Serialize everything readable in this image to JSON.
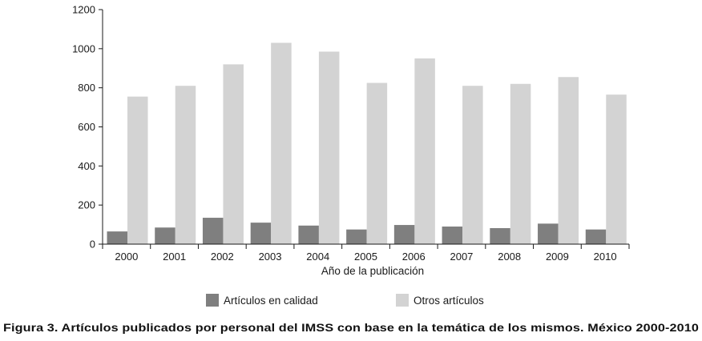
{
  "chart_data": {
    "type": "bar",
    "categories": [
      "2000",
      "2001",
      "2002",
      "2003",
      "2004",
      "2005",
      "2006",
      "2007",
      "2008",
      "2009",
      "2010"
    ],
    "series": [
      {
        "name": "Artículos en calidad",
        "values": [
          65,
          85,
          135,
          110,
          95,
          75,
          98,
          90,
          82,
          105,
          75
        ],
        "color": "#7f7f7f"
      },
      {
        "name": "Otros artículos",
        "values": [
          755,
          810,
          920,
          1030,
          985,
          825,
          950,
          810,
          820,
          855,
          765
        ],
        "color": "#d3d3d3"
      }
    ],
    "yticks": [
      "0",
      "200",
      "400",
      "600",
      "800",
      "1000",
      "1200"
    ],
    "ylim": [
      0,
      1200
    ],
    "xlabel": "Año de la publicación",
    "ylabel": "",
    "legend_position": "bottom",
    "grid": false
  },
  "caption": "Figura 3. Artículos publicados por personal del IMSS con base en la temática de los mismos. México 2000-2010"
}
